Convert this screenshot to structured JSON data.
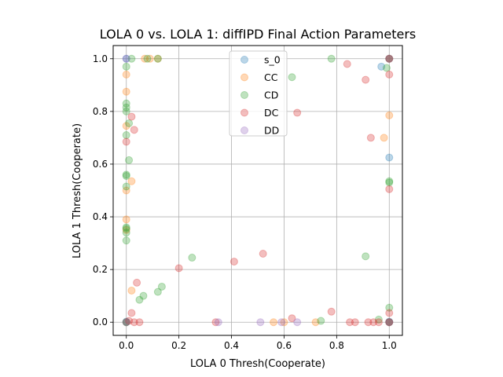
{
  "chart_data": {
    "type": "scatter",
    "title": "LOLA 0 vs. LOLA 1: diffIPD Final Action Parameters",
    "xlabel": "LOLA 0 Thresh(Cooperate)",
    "ylabel": "LOLA 1 Thresh(Cooperate)",
    "xlim": [
      -0.05,
      1.05
    ],
    "ylim": [
      -0.05,
      1.05
    ],
    "xticks": [
      "0.0",
      "0.2",
      "0.4",
      "0.6",
      "0.8",
      "1.0"
    ],
    "yticks": [
      "0.0",
      "0.2",
      "0.4",
      "0.6",
      "0.8",
      "1.0"
    ],
    "grid": true,
    "legend_position": "top-center",
    "series": [
      {
        "name": "s_0",
        "color": "#1f77b4",
        "points": [
          [
            0.0,
            1.0
          ],
          [
            0.0,
            0.0
          ],
          [
            1.0,
            1.0
          ],
          [
            1.0,
            0.0
          ],
          [
            0.97,
            0.97
          ],
          [
            1.0,
            0.625
          ],
          [
            0.0,
            0.002
          ],
          [
            1.0,
            0.002
          ]
        ]
      },
      {
        "name": "CC",
        "color": "#ff7f0e",
        "points": [
          [
            0.0,
            0.94
          ],
          [
            0.0,
            0.875
          ],
          [
            0.0,
            0.745
          ],
          [
            0.0,
            0.5
          ],
          [
            0.0,
            0.39
          ],
          [
            0.0,
            0.35
          ],
          [
            0.02,
            0.535
          ],
          [
            0.02,
            0.12
          ],
          [
            0.07,
            1.0
          ],
          [
            0.09,
            1.0
          ],
          [
            0.12,
            1.0
          ],
          [
            0.56,
            0.0
          ],
          [
            0.6,
            0.0
          ],
          [
            0.72,
            0.0
          ],
          [
            0.98,
            0.7
          ],
          [
            1.0,
            0.785
          ],
          [
            0.0,
            0.0
          ],
          [
            1.0,
            1.0
          ],
          [
            1.0,
            0.0
          ]
        ]
      },
      {
        "name": "CD",
        "color": "#2ca02c",
        "points": [
          [
            0.0,
            0.97
          ],
          [
            0.0,
            0.83
          ],
          [
            0.0,
            0.815
          ],
          [
            0.0,
            0.8
          ],
          [
            0.0,
            0.71
          ],
          [
            0.0,
            0.56
          ],
          [
            0.0,
            0.555
          ],
          [
            0.0,
            0.515
          ],
          [
            0.0,
            0.36
          ],
          [
            0.0,
            0.355
          ],
          [
            0.0,
            0.34
          ],
          [
            0.0,
            0.31
          ],
          [
            0.01,
            0.615
          ],
          [
            0.01,
            0.755
          ],
          [
            0.02,
            1.0
          ],
          [
            0.05,
            0.085
          ],
          [
            0.065,
            0.1
          ],
          [
            0.08,
            1.0
          ],
          [
            0.12,
            0.115
          ],
          [
            0.12,
            1.0
          ],
          [
            0.135,
            0.135
          ],
          [
            0.25,
            0.245
          ],
          [
            0.63,
            0.93
          ],
          [
            0.74,
            0.005
          ],
          [
            0.78,
            1.0
          ],
          [
            0.91,
            0.25
          ],
          [
            0.96,
            0.01
          ],
          [
            0.99,
            0.965
          ],
          [
            1.0,
            0.535
          ],
          [
            1.0,
            0.53
          ],
          [
            1.0,
            0.055
          ],
          [
            0.0,
            0.0
          ],
          [
            1.0,
            1.0
          ],
          [
            1.0,
            0.0
          ]
        ]
      },
      {
        "name": "DC",
        "color": "#d62728",
        "points": [
          [
            0.0,
            0.685
          ],
          [
            0.02,
            0.78
          ],
          [
            0.03,
            0.73
          ],
          [
            0.02,
            0.035
          ],
          [
            0.04,
            0.15
          ],
          [
            0.05,
            0.0
          ],
          [
            0.03,
            0.0
          ],
          [
            0.01,
            0.005
          ],
          [
            0.2,
            0.205
          ],
          [
            0.41,
            0.23
          ],
          [
            0.52,
            0.26
          ],
          [
            0.34,
            0.0
          ],
          [
            0.63,
            0.015
          ],
          [
            0.65,
            0.795
          ],
          [
            0.78,
            0.04
          ],
          [
            0.84,
            0.98
          ],
          [
            0.85,
            0.0
          ],
          [
            0.87,
            0.0
          ],
          [
            0.91,
            0.92
          ],
          [
            0.92,
            0.0
          ],
          [
            0.93,
            0.7
          ],
          [
            0.94,
            0.0
          ],
          [
            0.96,
            0.0
          ],
          [
            1.0,
            0.94
          ],
          [
            1.0,
            0.505
          ],
          [
            1.0,
            0.035
          ],
          [
            1.0,
            1.0
          ],
          [
            1.0,
            0.0
          ]
        ]
      },
      {
        "name": "DD",
        "color": "#9467bd",
        "points": [
          [
            0.0,
            1.0
          ],
          [
            0.0,
            0.0
          ],
          [
            0.35,
            0.0
          ],
          [
            0.51,
            0.0
          ],
          [
            0.59,
            0.0
          ],
          [
            0.65,
            0.0
          ],
          [
            1.0,
            1.0
          ],
          [
            1.0,
            0.0
          ]
        ]
      }
    ]
  }
}
